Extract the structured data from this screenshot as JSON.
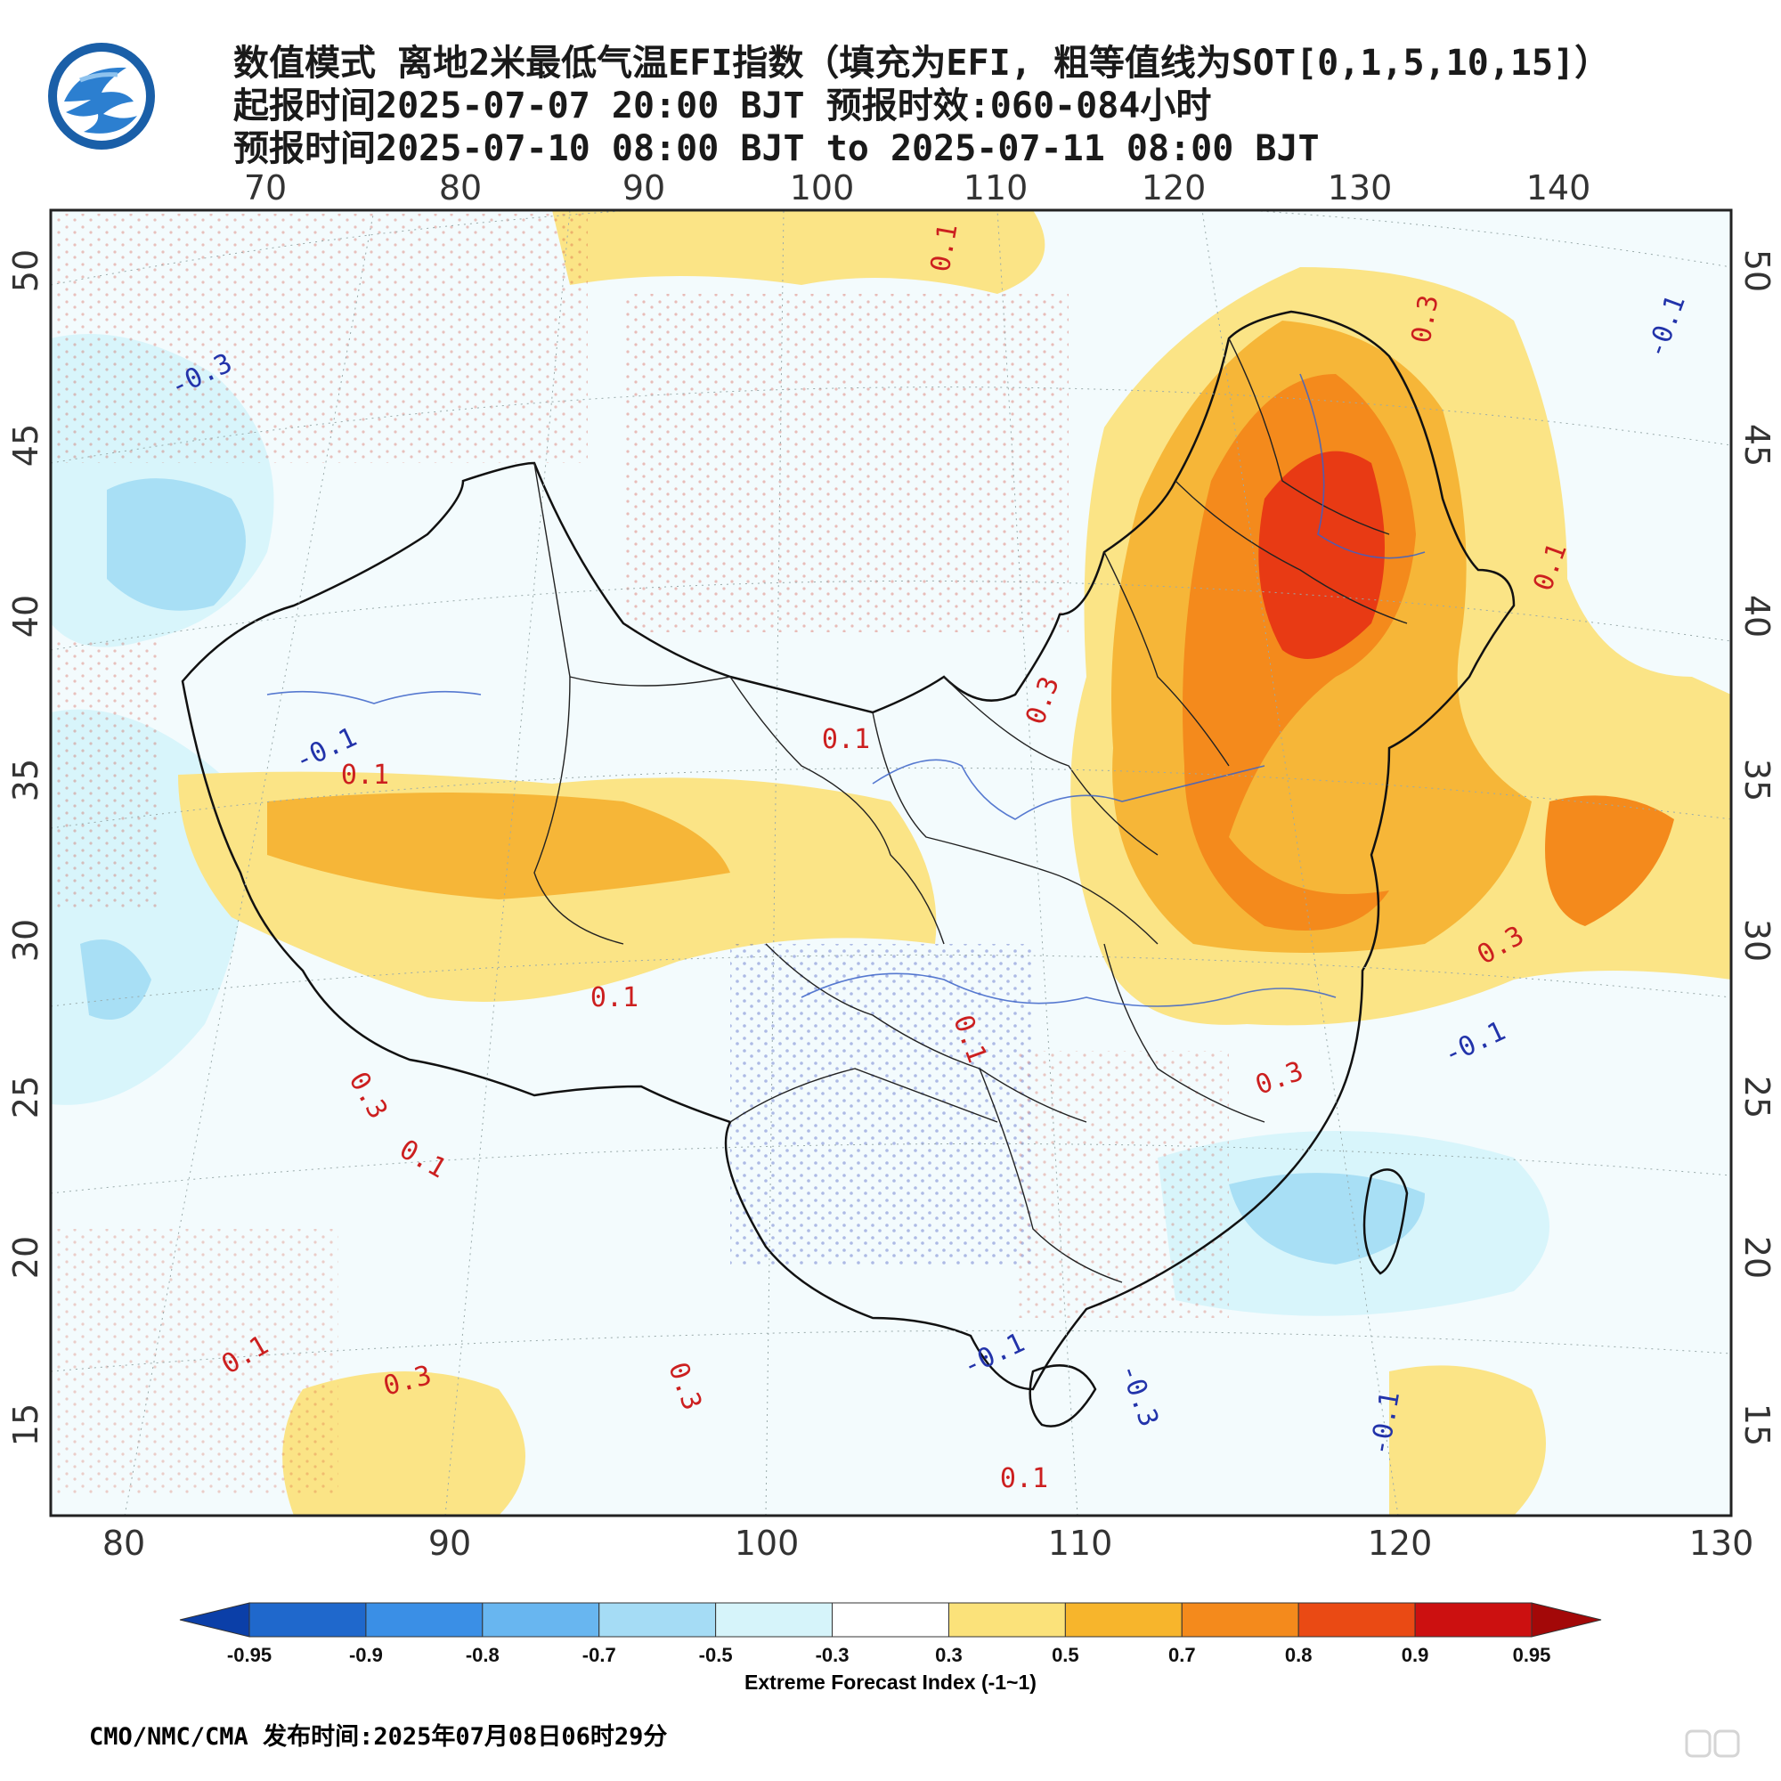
{
  "header": {
    "title_line1": "数值模式 离地2米最低气温EFI指数（填充为EFI, 粗等值线为SOT[0,1,5,10,15]）",
    "title_line2": "起报时间2025-07-07 20:00 BJT 预报时效:060-084小时",
    "title_line3": "预报时间2025-07-10 08:00 BJT to 2025-07-11 08:00 BJT"
  },
  "axes": {
    "top_lon": [
      "70",
      "80",
      "90",
      "100",
      "110",
      "120",
      "130",
      "140"
    ],
    "bottom_lon": [
      "80",
      "90",
      "100",
      "110",
      "120",
      "130"
    ],
    "left_lat": [
      "50",
      "45",
      "40",
      "35",
      "30",
      "25",
      "20",
      "15"
    ],
    "right_lat": [
      "50",
      "45",
      "40",
      "35",
      "30",
      "25",
      "20",
      "15"
    ]
  },
  "contour_labels": [
    {
      "text": "0.1",
      "color": "#cc1f1f"
    },
    {
      "text": "0.3",
      "color": "#cc1f1f"
    },
    {
      "text": "-0.3",
      "color": "#2233aa"
    },
    {
      "text": "-0.1",
      "color": "#2233aa"
    },
    {
      "text": "0.1",
      "color": "#cc1f1f"
    },
    {
      "text": "0.3",
      "color": "#cc1f1f"
    },
    {
      "text": "0.1",
      "color": "#cc1f1f"
    },
    {
      "text": "0.1",
      "color": "#cc1f1f"
    },
    {
      "text": "0.3",
      "color": "#cc1f1f"
    },
    {
      "text": "-0.1",
      "color": "#2233aa"
    },
    {
      "text": "0.1",
      "color": "#cc1f1f"
    },
    {
      "text": "0.1",
      "color": "#cc1f1f"
    },
    {
      "text": "0.3",
      "color": "#cc1f1f"
    },
    {
      "text": "-0.1",
      "color": "#2233aa"
    },
    {
      "text": "0.1",
      "color": "#cc1f1f"
    },
    {
      "text": "0.3",
      "color": "#cc1f1f"
    },
    {
      "text": "-0.1",
      "color": "#2233aa"
    },
    {
      "text": "0.1",
      "color": "#cc1f1f"
    },
    {
      "text": "0.3",
      "color": "#cc1f1f"
    },
    {
      "text": "0.3",
      "color": "#cc1f1f"
    },
    {
      "text": "-0.3",
      "color": "#2233aa"
    },
    {
      "text": "-0.1",
      "color": "#2233aa"
    },
    {
      "text": "0.1",
      "color": "#cc1f1f"
    }
  ],
  "colorbar": {
    "title": "Extreme Forecast Index (-1~1)",
    "ticks": [
      "-0.95",
      "-0.9",
      "-0.8",
      "-0.7",
      "-0.5",
      "-0.3",
      "0.3",
      "0.5",
      "0.7",
      "0.8",
      "0.9",
      "0.95"
    ],
    "colors": [
      "#0b3fa8",
      "#1f68cc",
      "#3a8fe6",
      "#68b6f0",
      "#a5dcf5",
      "#d6f4fa",
      "#ffffff",
      "#fbe27a",
      "#f7b52c",
      "#f48a1c",
      "#ea4a14",
      "#cc1010",
      "#a30808"
    ]
  },
  "footer": {
    "text": "CMO/NMC/CMA 发布时间:2025年07月08日06时29分"
  },
  "colors": {
    "efi_cold_light": "#d8f5fb",
    "efi_cold_mid": "#a8dff5",
    "efi_warm_light": "#fbe486",
    "efi_warm_mid": "#f6b638",
    "efi_warm_high": "#f48a1c",
    "efi_warm_extreme": "#e83a14"
  }
}
